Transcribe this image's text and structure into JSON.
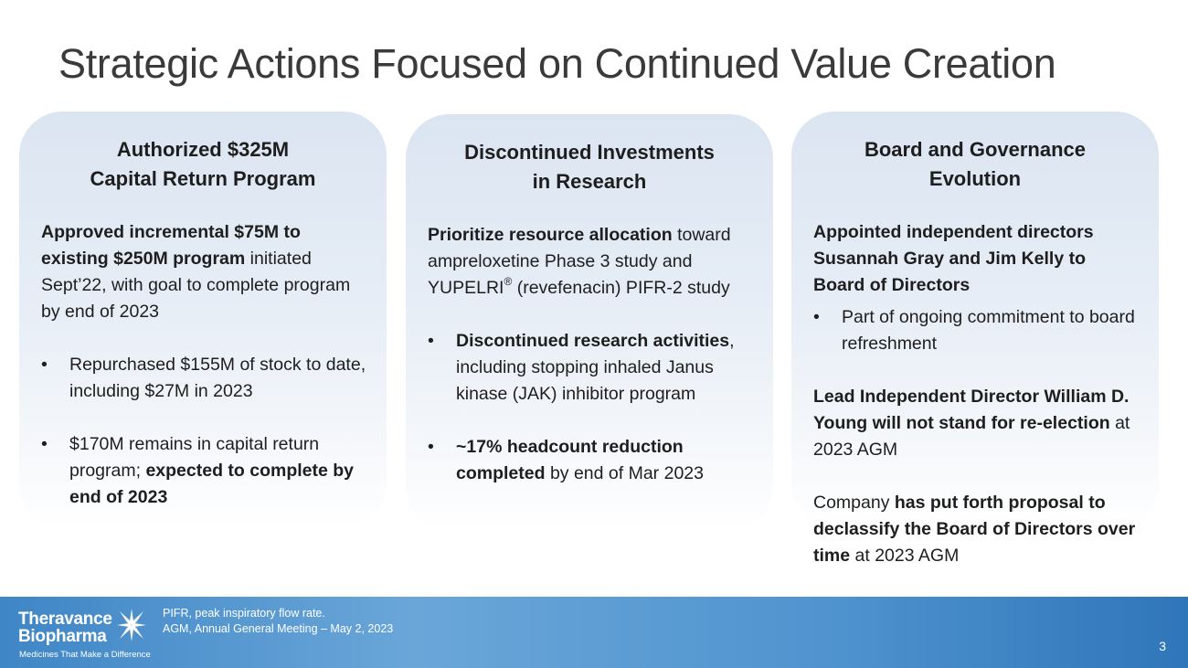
{
  "title": "Strategic Actions Focused on Continued Value Creation",
  "cards": [
    {
      "heading_line1": "Authorized $325M",
      "heading_line2": "Capital Return Program",
      "intro_bold": "Approved incremental $75M to existing $250M program",
      "intro_rest": " initiated Sept’22, with goal to complete program by end of 2023",
      "bullet1": "Repurchased $155M of stock to date, including $27M in 2023",
      "bullet2_plain": "$170M remains in capital return program; ",
      "bullet2_bold": "expected to complete by end of 2023"
    },
    {
      "heading_line1": "Discontinued Investments",
      "heading_line2": "in Research",
      "intro_bold": "Prioritize resource allocation",
      "intro_rest_a": " toward ampreloxetine Phase 3 study and YUPELRI",
      "intro_reg": "®",
      "intro_rest_b": " (revefenacin) PIFR-2 study",
      "bullet1_bold": "Discontinued research activities",
      "bullet1_rest": ", including stopping inhaled Janus kinase (JAK) inhibitor program",
      "bullet2_bold_a": "~17% ",
      "bullet2_bold_b": "headcount reduction completed",
      "bullet2_rest": " by end of Mar 2023"
    },
    {
      "heading_line1": "Board and Governance",
      "heading_line2": "Evolution",
      "intro_bold": "Appointed independent directors Susannah Gray and Jim Kelly to Board of Directors",
      "bullet1": "Part of ongoing commitment to board refreshment",
      "para2_bold": "Lead Independent Director William D. Young will not stand for re-election",
      "para2_rest": " at 2023 AGM",
      "para3_plain": "Company ",
      "para3_bold": "has put forth proposal to declassify the Board of Directors over time",
      "para3_rest": " at 2023 AGM"
    }
  ],
  "bullet_glyph": "•",
  "footer": {
    "logo_line1": "Theravance",
    "logo_line2": "Biopharma",
    "logo_tagline": "Medicines That Make a Difference",
    "note1": "PIFR, peak inspiratory flow rate.",
    "note2": "AGM, Annual General Meeting – May 2, 2023",
    "page_number": "3"
  }
}
